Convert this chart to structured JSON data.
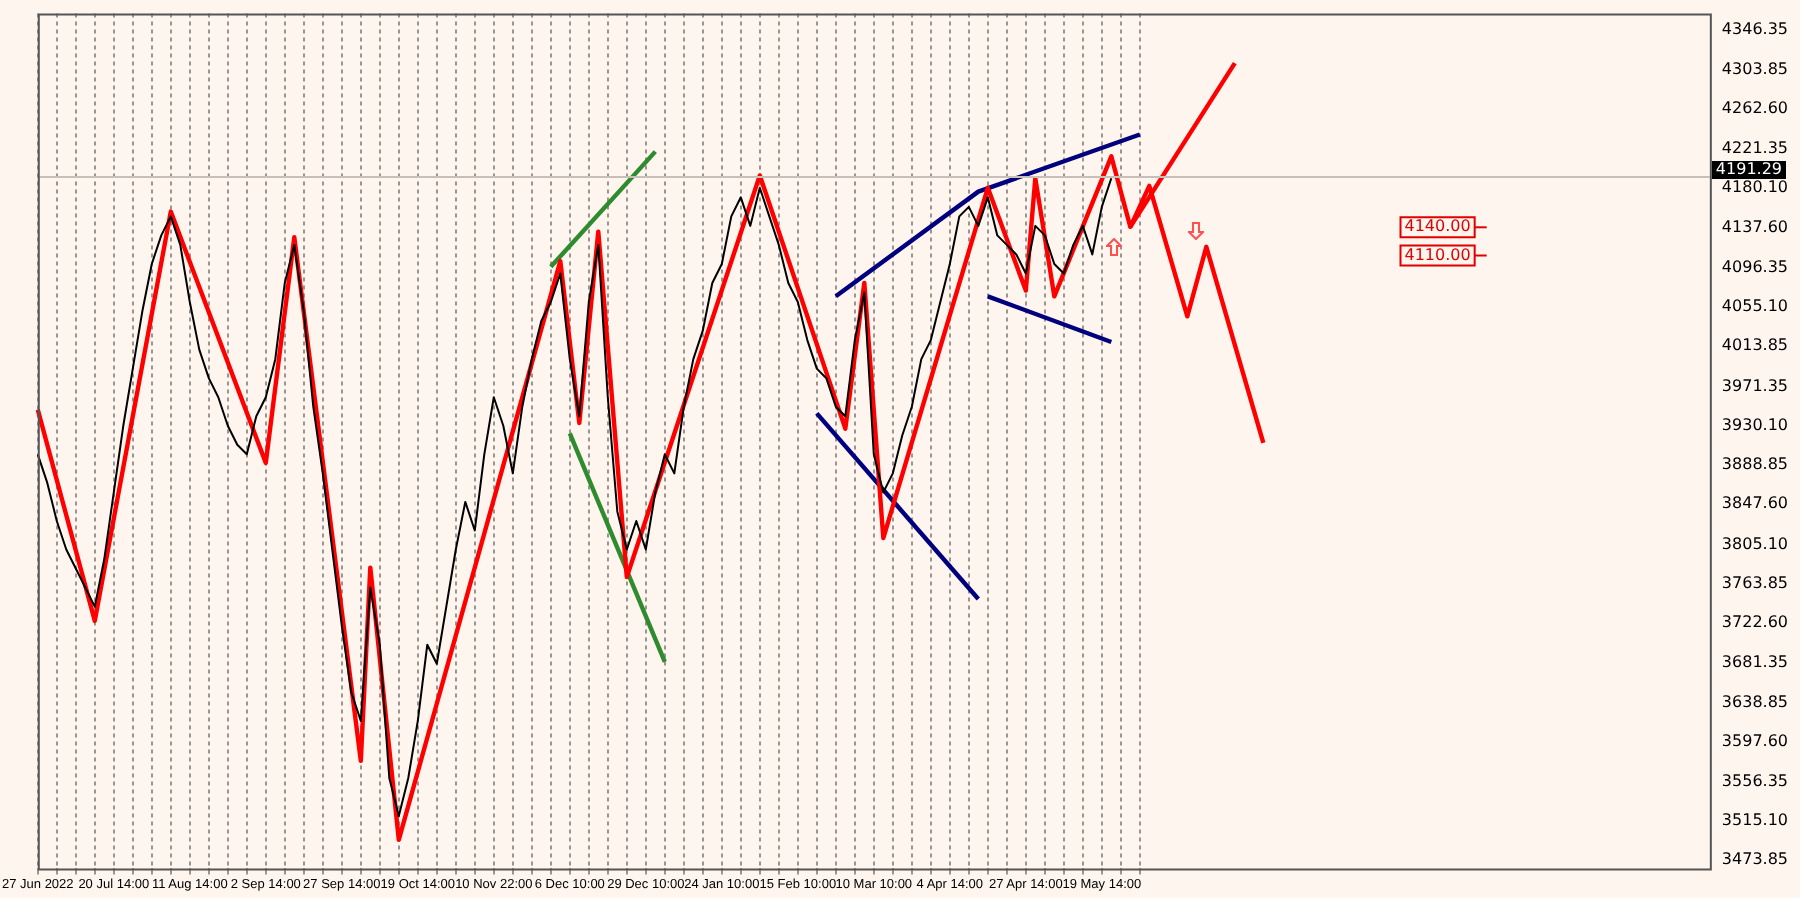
{
  "chart_data": {
    "type": "line",
    "categories": [
      "27 Jun 2022",
      null,
      null,
      null,
      null,
      null,
      null,
      null,
      "20 Jul 14:00",
      null,
      null,
      null,
      null,
      null,
      null,
      null,
      "11 Aug 14:00",
      null,
      null,
      null,
      null,
      null,
      null,
      null,
      "2 Sep 14:00",
      null,
      null,
      null,
      null,
      null,
      null,
      null,
      "27 Sep 14:00",
      null,
      null,
      null,
      null,
      null,
      null,
      null,
      "19 Oct 14:00",
      null,
      null,
      null,
      null,
      null,
      null,
      null,
      "10 Nov 22:00",
      null,
      null,
      null,
      null,
      null,
      null,
      null,
      "6 Dec 10:00",
      null,
      null,
      null,
      null,
      null,
      null,
      null,
      "29 Dec 10:00",
      null,
      null,
      null,
      null,
      null,
      null,
      null,
      "24 Jan 10:00",
      null,
      null,
      null,
      null,
      null,
      null,
      null,
      "15 Feb 10:00",
      null,
      null,
      null,
      null,
      null,
      null,
      null,
      "10 Mar 10:00",
      null,
      null,
      null,
      null,
      null,
      null,
      null,
      "4 Apr 14:00",
      null,
      null,
      null,
      null,
      null,
      null,
      null,
      "27 Apr 14:00",
      null,
      null,
      null,
      null,
      null,
      null,
      null,
      "19 May 14:00",
      null,
      null,
      null,
      null,
      null,
      null,
      null,
      null,
      null,
      null,
      null,
      null,
      null,
      null,
      null,
      null,
      null,
      null,
      null,
      null,
      null,
      null,
      null,
      null,
      null,
      null,
      null,
      null,
      null,
      null,
      null,
      null,
      null,
      null,
      null,
      null,
      null,
      null,
      null,
      null,
      null,
      null,
      null,
      null,
      null,
      null,
      null,
      null,
      null,
      null,
      null,
      null,
      null,
      null,
      null,
      null,
      null,
      null,
      null,
      null,
      null,
      null,
      null,
      null
    ],
    "series": [
      {
        "color": "#000000",
        "values": [
          3900,
          3870,
          3830,
          3800,
          3780,
          3760,
          3740,
          3790,
          3860,
          3930,
          3990,
          4050,
          4100,
          4130,
          4150,
          4120,
          4060,
          4010,
          3980,
          3960,
          3930,
          3910,
          3900,
          3940,
          3960,
          4000,
          4080,
          4120,
          4050,
          3950,
          3880,
          3800,
          3720,
          3650,
          3620,
          3760,
          3700,
          3560,
          3520,
          3560,
          3620,
          3700,
          3680,
          3740,
          3800,
          3850,
          3820,
          3900,
          3960,
          3930,
          3880,
          3950,
          4000,
          4040,
          4060,
          4090,
          4000,
          3940,
          4060,
          4120,
          3960,
          3840,
          3800,
          3830,
          3800,
          3860,
          3900,
          3880,
          3950,
          4000,
          4030,
          4080,
          4100,
          4150,
          4170,
          4140,
          4180,
          4150,
          4120,
          4080,
          4060,
          4020,
          3990,
          3980,
          3950,
          3940,
          4020,
          4070,
          3900,
          3860,
          3880,
          3920,
          3950,
          4000,
          4020,
          4060,
          4100,
          4150,
          4160,
          4140,
          4170,
          4130,
          4120,
          4110,
          4090,
          4140,
          4130,
          4100,
          4090,
          4120,
          4140,
          4110,
          4160,
          4190,
          null,
          null,
          null,
          null,
          null,
          null,
          null,
          null,
          null,
          null,
          null,
          null,
          null,
          null,
          null,
          null,
          null,
          null,
          null,
          null,
          null,
          null,
          null,
          null,
          null,
          null,
          null,
          null,
          null,
          null,
          null,
          null,
          null,
          null,
          null,
          null,
          null,
          null,
          null,
          null,
          null,
          null,
          null,
          null,
          null,
          null,
          null,
          null,
          null,
          null,
          null,
          null,
          null,
          null,
          null,
          null,
          null,
          null,
          null,
          null,
          null,
          null,
          null
        ]
      },
      {
        "color": "#ff0000",
        "values": [
          3947,
          null,
          null,
          null,
          null,
          null,
          3725,
          null,
          null,
          null,
          null,
          null,
          null,
          null,
          4155,
          null,
          null,
          null,
          null,
          null,
          null,
          null,
          null,
          null,
          3891,
          null,
          null,
          4128,
          null,
          null,
          null,
          null,
          null,
          null,
          3578,
          3781,
          null,
          null,
          3495,
          null,
          null,
          null,
          null,
          null,
          null,
          null,
          null,
          null,
          null,
          null,
          null,
          null,
          null,
          null,
          null,
          4103,
          null,
          3933,
          null,
          4134,
          null,
          null,
          3771,
          null,
          null,
          null,
          null,
          null,
          null,
          null,
          null,
          null,
          null,
          null,
          null,
          null,
          4193,
          null,
          null,
          null,
          null,
          null,
          null,
          null,
          null,
          3927,
          null,
          4080,
          null,
          3812,
          null,
          null,
          null,
          null,
          null,
          null,
          null,
          null,
          null,
          null,
          4180,
          null,
          null,
          null,
          4072,
          4190,
          null,
          4066,
          null,
          null,
          null,
          null,
          null,
          4213,
          null,
          4139,
          null,
          4182,
          null,
          null,
          null,
          4045,
          null,
          4118,
          null,
          null,
          null,
          null,
          null,
          3912,
          null,
          null,
          null,
          null,
          null,
          null,
          null,
          null,
          null,
          null,
          null,
          null,
          null,
          null,
          null,
          null,
          null,
          null,
          null,
          null,
          null,
          null,
          null,
          null,
          null,
          null,
          null,
          null,
          null,
          null,
          null,
          null,
          null,
          null,
          null,
          null,
          null,
          null,
          null,
          null,
          null,
          null,
          null,
          null,
          null,
          null,
          null
        ]
      },
      {
        "color": "#ff0000",
        "values": [
          null,
          null,
          null,
          null,
          null,
          null,
          null,
          null,
          null,
          null,
          null,
          null,
          null,
          null,
          null,
          null,
          null,
          null,
          null,
          null,
          null,
          null,
          null,
          null,
          null,
          null,
          null,
          null,
          null,
          null,
          null,
          null,
          null,
          null,
          null,
          null,
          null,
          null,
          null,
          null,
          null,
          null,
          null,
          null,
          null,
          null,
          null,
          null,
          null,
          null,
          null,
          null,
          null,
          null,
          null,
          null,
          null,
          null,
          null,
          null,
          null,
          null,
          null,
          null,
          null,
          null,
          null,
          null,
          null,
          null,
          null,
          null,
          null,
          null,
          null,
          null,
          null,
          null,
          null,
          null,
          null,
          null,
          null,
          null,
          null,
          null,
          null,
          null,
          null,
          null,
          null,
          null,
          null,
          null,
          null,
          null,
          null,
          null,
          null,
          null,
          null,
          null,
          null,
          null,
          null,
          null,
          null,
          null,
          null,
          null,
          null,
          null,
          null,
          null,
          null,
          4139,
          null,
          null,
          null,
          null,
          null,
          null,
          null,
          null,
          null,
          null,
          4311,
          null,
          null,
          null,
          null,
          null,
          null,
          null,
          null,
          null,
          null,
          null,
          null,
          null,
          null,
          null,
          null,
          null,
          null,
          null,
          null,
          null,
          null,
          null,
          null,
          null,
          null,
          null,
          null,
          null,
          null,
          null,
          null,
          null,
          null,
          null,
          null,
          null,
          null,
          null,
          null,
          null,
          null,
          null,
          null,
          null,
          null,
          null,
          null,
          null,
          null
        ]
      },
      {
        "color": "#00007f",
        "values": [
          null,
          null,
          null,
          null,
          null,
          null,
          null,
          null,
          null,
          null,
          null,
          null,
          null,
          null,
          null,
          null,
          null,
          null,
          null,
          null,
          null,
          null,
          null,
          null,
          null,
          null,
          null,
          null,
          null,
          null,
          null,
          null,
          null,
          null,
          null,
          null,
          null,
          null,
          null,
          null,
          null,
          null,
          null,
          null,
          null,
          null,
          null,
          null,
          null,
          null,
          null,
          null,
          null,
          null,
          null,
          null,
          null,
          null,
          null,
          null,
          null,
          null,
          null,
          null,
          null,
          null,
          null,
          null,
          null,
          null,
          null,
          null,
          null,
          null,
          null,
          null,
          null,
          null,
          null,
          null,
          null,
          null,
          null,
          null,
          4066,
          null,
          null,
          null,
          null,
          null,
          null,
          null,
          null,
          null,
          null,
          null,
          null,
          null,
          null,
          4176,
          null,
          null,
          null,
          null,
          null,
          null,
          null,
          null,
          null,
          null,
          null,
          null,
          null,
          null,
          null,
          null,
          4236,
          null,
          null,
          null,
          null,
          null,
          null,
          null,
          null,
          null,
          null,
          null,
          null,
          null,
          null,
          null,
          null,
          null,
          null,
          null,
          null,
          null,
          null,
          null,
          null,
          null,
          null,
          null,
          null,
          null,
          null,
          null,
          null,
          null,
          null,
          null,
          null,
          null,
          null,
          null,
          null,
          null,
          null,
          null,
          null,
          null,
          null,
          null,
          null,
          null,
          null,
          null,
          null,
          null,
          null,
          null,
          null,
          null,
          null,
          null,
          null
        ]
      },
      {
        "color": "#00007f",
        "values": [
          null,
          null,
          null,
          null,
          null,
          null,
          null,
          null,
          null,
          null,
          null,
          null,
          null,
          null,
          null,
          null,
          null,
          null,
          null,
          null,
          null,
          null,
          null,
          null,
          null,
          null,
          null,
          null,
          null,
          null,
          null,
          null,
          null,
          null,
          null,
          null,
          null,
          null,
          null,
          null,
          null,
          null,
          null,
          null,
          null,
          null,
          null,
          null,
          null,
          null,
          null,
          null,
          null,
          null,
          null,
          null,
          null,
          null,
          null,
          null,
          null,
          null,
          null,
          null,
          null,
          null,
          null,
          null,
          null,
          null,
          null,
          null,
          null,
          null,
          null,
          null,
          null,
          null,
          null,
          null,
          null,
          null,
          null,
          null,
          null,
          null,
          null,
          null,
          null,
          null,
          null,
          null,
          null,
          null,
          null,
          null,
          null,
          null,
          null,
          null,
          4066,
          null,
          null,
          null,
          null,
          null,
          null,
          null,
          null,
          null,
          null,
          null,
          null,
          4018,
          null,
          null,
          null,
          null,
          null,
          null,
          null,
          null,
          null,
          null,
          null,
          null,
          null,
          null,
          null,
          null,
          null,
          null,
          null,
          null,
          null,
          null,
          null,
          null,
          null,
          null,
          null,
          null,
          null,
          null,
          null,
          null,
          null,
          null,
          null,
          null,
          null,
          null,
          null,
          null,
          null,
          null,
          null,
          null,
          null,
          null,
          null,
          null,
          null,
          null,
          null,
          null,
          null,
          null,
          null,
          null,
          null,
          null,
          null,
          null,
          null,
          null,
          null
        ]
      },
      {
        "color": "#00007f",
        "values": [
          null,
          null,
          null,
          null,
          null,
          null,
          null,
          null,
          null,
          null,
          null,
          null,
          null,
          null,
          null,
          null,
          null,
          null,
          null,
          null,
          null,
          null,
          null,
          null,
          null,
          null,
          null,
          null,
          null,
          null,
          null,
          null,
          null,
          null,
          null,
          null,
          null,
          null,
          null,
          null,
          null,
          null,
          null,
          null,
          null,
          null,
          null,
          null,
          null,
          null,
          null,
          null,
          null,
          null,
          null,
          null,
          null,
          null,
          null,
          null,
          null,
          null,
          null,
          null,
          null,
          null,
          null,
          null,
          null,
          null,
          null,
          null,
          null,
          null,
          null,
          null,
          null,
          null,
          null,
          null,
          null,
          null,
          3943,
          null,
          null,
          null,
          null,
          null,
          null,
          null,
          null,
          null,
          null,
          null,
          null,
          null,
          null,
          null,
          null,
          3748,
          null,
          null,
          null,
          null,
          null,
          null,
          null,
          null,
          null,
          null,
          null,
          null,
          null,
          null,
          null,
          null,
          null,
          null,
          null,
          null,
          null,
          null,
          null,
          null,
          null,
          null,
          null,
          null,
          null,
          null,
          null,
          null,
          null,
          null,
          null,
          null,
          null,
          null,
          null,
          null,
          null,
          null,
          null,
          null,
          null,
          null,
          null,
          null,
          null,
          null,
          null,
          null,
          null,
          null,
          null,
          null,
          null,
          null,
          null,
          null,
          null,
          null,
          null,
          null,
          null,
          null,
          null,
          null,
          null,
          null,
          null,
          null,
          null,
          null,
          null,
          null,
          null
        ]
      },
      {
        "color": "#2e8b2e",
        "values": [
          null,
          null,
          null,
          null,
          null,
          null,
          null,
          null,
          null,
          null,
          null,
          null,
          null,
          null,
          null,
          null,
          null,
          null,
          null,
          null,
          null,
          null,
          null,
          null,
          null,
          null,
          null,
          null,
          null,
          null,
          null,
          null,
          null,
          null,
          null,
          null,
          null,
          null,
          null,
          null,
          null,
          null,
          null,
          null,
          null,
          null,
          null,
          null,
          null,
          null,
          null,
          null,
          null,
          null,
          4097,
          null,
          null,
          null,
          null,
          null,
          null,
          null,
          null,
          null,
          null,
          4218,
          null,
          null,
          null,
          null,
          null,
          null,
          null,
          null,
          null,
          null,
          null,
          null,
          null,
          null,
          null,
          null,
          null,
          null,
          null,
          null,
          null,
          null,
          null,
          null,
          null,
          null,
          null,
          null,
          null,
          null,
          null,
          null,
          null,
          null,
          null,
          null,
          null,
          null,
          null,
          null,
          null,
          null,
          null,
          null,
          null,
          null,
          null,
          null,
          null,
          null,
          null,
          null,
          null,
          null,
          null,
          null,
          null,
          null,
          null,
          null,
          null,
          null,
          null,
          null,
          null,
          null,
          null,
          null,
          null,
          null,
          null,
          null,
          null,
          null,
          null,
          null,
          null,
          null,
          null,
          null,
          null,
          null,
          null,
          null,
          null,
          null,
          null,
          null,
          null,
          null,
          null,
          null,
          null,
          null,
          null,
          null,
          null,
          null,
          null,
          null,
          null,
          null,
          null,
          null,
          null,
          null,
          null,
          null,
          null,
          null,
          null
        ]
      },
      {
        "color": "#2e8b2e",
        "values": [
          null,
          null,
          null,
          null,
          null,
          null,
          null,
          null,
          null,
          null,
          null,
          null,
          null,
          null,
          null,
          null,
          null,
          null,
          null,
          null,
          null,
          null,
          null,
          null,
          null,
          null,
          null,
          null,
          null,
          null,
          null,
          null,
          null,
          null,
          null,
          null,
          null,
          null,
          null,
          null,
          null,
          null,
          null,
          null,
          null,
          null,
          null,
          null,
          null,
          null,
          null,
          null,
          null,
          null,
          null,
          null,
          3922,
          null,
          null,
          null,
          null,
          null,
          null,
          null,
          null,
          null,
          3682,
          null,
          null,
          null,
          null,
          null,
          null,
          null,
          null,
          null,
          null,
          null,
          null,
          null,
          null,
          null,
          null,
          null,
          null,
          null,
          null,
          null,
          null,
          null,
          null,
          null,
          null,
          null,
          null,
          null,
          null,
          null,
          null,
          null,
          null,
          null,
          null,
          null,
          null,
          null,
          null,
          null,
          null,
          null,
          null,
          null,
          null,
          null,
          null,
          null,
          null,
          null,
          null,
          null,
          null,
          null,
          null,
          null,
          null,
          null,
          null,
          null,
          null,
          null,
          null,
          null,
          null,
          null,
          null,
          null,
          null,
          null,
          null,
          null,
          null,
          null,
          null,
          null,
          null,
          null,
          null,
          null,
          null,
          null,
          null,
          null,
          null,
          null,
          null,
          null,
          null,
          null,
          null,
          null,
          null,
          null,
          null,
          null,
          null,
          null,
          null,
          null,
          null,
          null,
          null,
          null,
          null,
          null,
          null,
          null,
          null
        ]
      }
    ],
    "ylim": [
      3465,
      4363
    ],
    "yticks": [
      3473.85,
      {
        "value": 3515.1,
        "label": "3515.10"
      },
      3556.35,
      {
        "value": 3597.6,
        "label": "3597.60"
      },
      3638.85,
      3681.35,
      {
        "value": 3722.6,
        "label": "3722.60"
      },
      3763.85,
      {
        "value": 3805.1,
        "label": "3805.10"
      },
      {
        "value": 3847.6,
        "label": "3847.60"
      },
      3888.85,
      {
        "value": 3930.1,
        "label": "3930.10"
      },
      3971.35,
      4013.85,
      {
        "value": 4055.1,
        "label": "4055.10"
      },
      4096.35,
      {
        "value": 4137.6,
        "label": "4137.60"
      },
      {
        "value": 4180.1,
        "label": "4180.10"
      },
      4221.35,
      {
        "value": 4262.6,
        "label": "4262.60"
      },
      4303.85,
      4346.35
    ],
    "grid": "x",
    "ref_lines": [
      {
        "axis": "y",
        "value": 4191.29,
        "label": "4191.29",
        "color": "#c8c0b8"
      }
    ],
    "annotations": [
      "4140.00",
      "4110.00"
    ]
  }
}
